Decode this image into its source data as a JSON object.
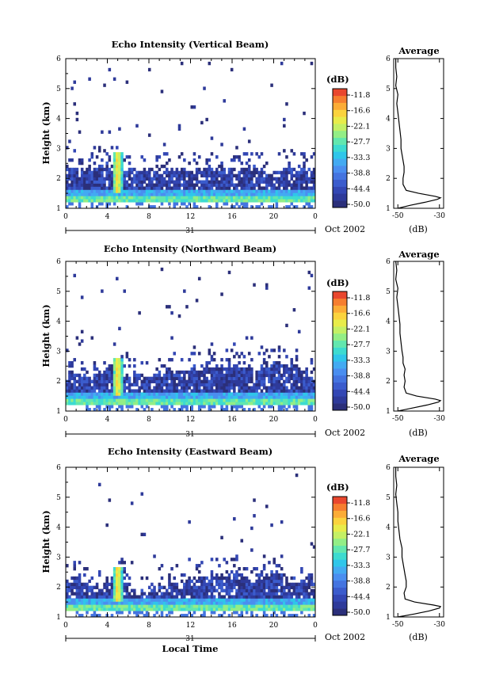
{
  "figure": {
    "time_axis_label": "Local Time",
    "date_label": "Oct 2002",
    "day_label": "31"
  },
  "chart_data": [
    {
      "type": "heatmap",
      "title": "Echo Intensity (Vertical Beam)",
      "xlabel": "",
      "ylabel": "Height (km)",
      "xlim": [
        0,
        24
      ],
      "ylim": [
        1,
        6
      ],
      "xticks": [
        "0",
        "4",
        "8",
        "12",
        "16",
        "20",
        "0"
      ],
      "yticks": [
        "1",
        "2",
        "3",
        "4",
        "5",
        "6"
      ],
      "colorbar": {
        "unit": "(dB)",
        "levels": [
          "-11.8",
          "-16.6",
          "-22.1",
          "-27.7",
          "-33.3",
          "-38.8",
          "-44.4",
          "-50.0"
        ]
      },
      "features": {
        "band_top_km": [
          2.4,
          2.4,
          2.3,
          2.4,
          2.5,
          2.4,
          2.3,
          2.3,
          2.2,
          2.3,
          2.2,
          2.3,
          2.3,
          2.2,
          2.3,
          2.3,
          2.2,
          2.4,
          2.3,
          2.3,
          2.2,
          2.3,
          2.3,
          2.3,
          2.4
        ],
        "plume": {
          "time_h": 5.0,
          "top_km": 2.9
        },
        "scatter_top_km": 5.9
      },
      "average_profile": {
        "title": "Average",
        "xlabel": "(dB)",
        "xlim": [
          -52,
          -28
        ],
        "xticks": [
          "-50",
          "-30"
        ],
        "height_km": [
          1.0,
          1.1,
          1.2,
          1.3,
          1.35,
          1.4,
          1.5,
          1.6,
          1.8,
          2.0,
          2.2,
          2.4,
          2.6,
          2.8,
          3.0,
          3.3,
          3.6,
          3.9,
          4.2,
          4.5,
          4.8,
          5.1,
          5.4,
          5.7,
          6.0
        ],
        "db": [
          -50,
          -44,
          -37,
          -31,
          -29.5,
          -32,
          -40,
          -46,
          -47.5,
          -47.5,
          -47,
          -47,
          -47.5,
          -48,
          -48.5,
          -48.5,
          -49,
          -49.5,
          -50,
          -50.5,
          -50,
          -51,
          -50.5,
          -51,
          -51
        ]
      }
    },
    {
      "type": "heatmap",
      "title": "Echo Intensity (Northward Beam)",
      "xlabel": "",
      "ylabel": "Height (km)",
      "xlim": [
        0,
        24
      ],
      "ylim": [
        1,
        6
      ],
      "xticks": [
        "0",
        "4",
        "8",
        "12",
        "16",
        "20",
        "0"
      ],
      "yticks": [
        "1",
        "2",
        "3",
        "4",
        "5",
        "6"
      ],
      "colorbar": {
        "unit": "(dB)",
        "levels": [
          "-11.8",
          "-16.6",
          "-22.1",
          "-27.7",
          "-33.3",
          "-38.8",
          "-44.4",
          "-50.0"
        ]
      },
      "features": {
        "band_top_km": [
          2.2,
          2.3,
          2.2,
          2.1,
          2.4,
          2.5,
          2.2,
          2.1,
          2.2,
          2.3,
          2.4,
          2.3,
          2.4,
          2.5,
          2.6,
          2.5,
          2.6,
          2.5,
          2.4,
          2.5,
          2.6,
          2.5,
          2.6,
          2.4,
          2.3
        ],
        "plume": {
          "time_h": 5.0,
          "top_km": 2.8
        },
        "scatter_top_km": 5.9
      },
      "average_profile": {
        "title": "Average",
        "xlabel": "(dB)",
        "xlim": [
          -52,
          -28
        ],
        "xticks": [
          "-50",
          "-30"
        ],
        "height_km": [
          1.0,
          1.1,
          1.2,
          1.3,
          1.35,
          1.4,
          1.5,
          1.6,
          1.8,
          2.0,
          2.2,
          2.4,
          2.6,
          2.8,
          3.0,
          3.3,
          3.6,
          3.9,
          4.2,
          4.5,
          4.8,
          5.1,
          5.4,
          5.7,
          6.0
        ],
        "db": [
          -50,
          -43,
          -36,
          -30.5,
          -29.5,
          -32,
          -41,
          -46,
          -47,
          -46.5,
          -47,
          -46.5,
          -47.5,
          -47.5,
          -48,
          -48.5,
          -49,
          -49,
          -49.5,
          -50,
          -50.5,
          -50,
          -51,
          -50.5,
          -51
        ]
      }
    },
    {
      "type": "heatmap",
      "title": "Echo Intensity (Eastward Beam)",
      "xlabel": "Local Time",
      "ylabel": "Height (km)",
      "xlim": [
        0,
        24
      ],
      "ylim": [
        1,
        6
      ],
      "xticks": [
        "0",
        "4",
        "8",
        "12",
        "16",
        "20",
        "0"
      ],
      "yticks": [
        "1",
        "2",
        "3",
        "4",
        "5",
        "6"
      ],
      "colorbar": {
        "unit": "(dB)",
        "levels": [
          "-11.8",
          "-16.6",
          "-22.1",
          "-27.7",
          "-33.3",
          "-38.8",
          "-44.4",
          "-50.0"
        ]
      },
      "features": {
        "band_top_km": [
          2.2,
          2.3,
          2.0,
          1.9,
          2.3,
          2.5,
          1.9,
          1.8,
          1.9,
          2.0,
          2.1,
          2.2,
          2.3,
          2.3,
          2.4,
          2.4,
          2.5,
          2.4,
          2.3,
          2.4,
          2.5,
          2.3,
          2.2,
          2.2,
          2.1
        ],
        "plume": {
          "time_h": 5.0,
          "top_km": 2.7
        },
        "scatter_top_km": 5.9
      },
      "average_profile": {
        "title": "Average",
        "xlabel": "(dB)",
        "xlim": [
          -52,
          -28
        ],
        "xticks": [
          "-50",
          "-30"
        ],
        "height_km": [
          1.0,
          1.1,
          1.2,
          1.3,
          1.35,
          1.4,
          1.5,
          1.6,
          1.8,
          2.0,
          2.2,
          2.4,
          2.6,
          2.8,
          3.0,
          3.3,
          3.6,
          3.9,
          4.2,
          4.5,
          4.8,
          5.1,
          5.4,
          5.7,
          6.0
        ],
        "db": [
          -50,
          -42,
          -35,
          -30,
          -29.5,
          -33,
          -42,
          -46.5,
          -47,
          -46,
          -46,
          -46.5,
          -47,
          -47.5,
          -48,
          -48,
          -49,
          -49.5,
          -50,
          -50,
          -50.5,
          -51,
          -50.5,
          -51,
          -51
        ]
      }
    }
  ]
}
